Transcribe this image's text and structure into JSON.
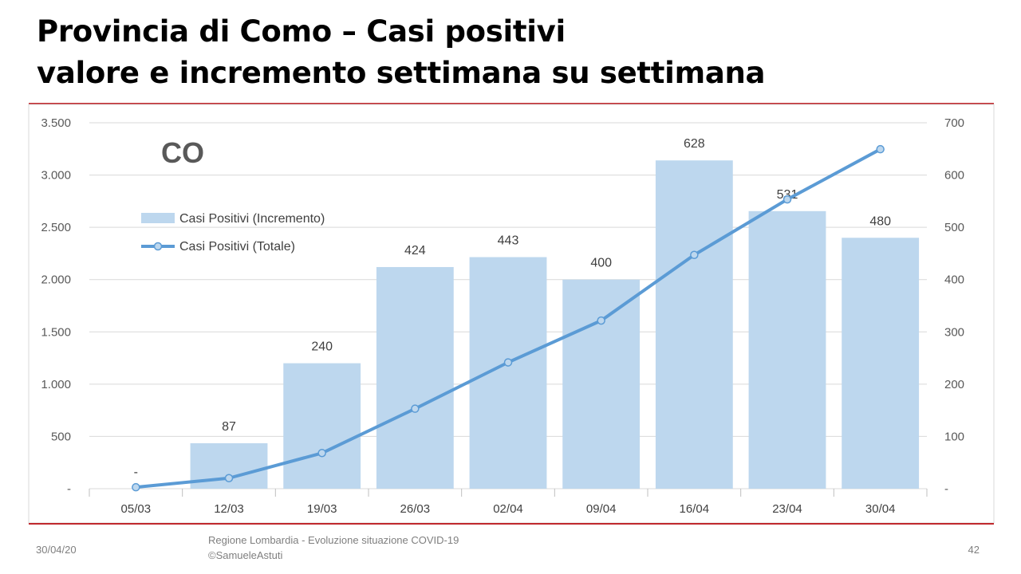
{
  "slide": {
    "title_line1": "Provincia di Como – Casi positivi",
    "title_line2": "valore e incremento settimana su settimana",
    "province_code": "CO",
    "footer_date": "30/04/20",
    "footer_source": "Regione Lombardia - Evoluzione situazione COVID-19",
    "footer_author": "©SamueleAstuti",
    "page_number": "42"
  },
  "chart_data": {
    "type": "bar",
    "categories": [
      "05/03",
      "12/03",
      "19/03",
      "26/03",
      "02/04",
      "09/04",
      "16/04",
      "23/04",
      "30/04"
    ],
    "series": [
      {
        "name": "Casi Positivi (Incremento)",
        "type": "bar",
        "axis": "right",
        "values": [
          0,
          87,
          240,
          424,
          443,
          400,
          628,
          531,
          480
        ],
        "labels": [
          "-",
          "87",
          "240",
          "424",
          "443",
          "400",
          "628",
          "531",
          "480"
        ],
        "color": "#bdd7ee"
      },
      {
        "name": "Casi Positivi (Totale)",
        "type": "line",
        "axis": "left",
        "values": [
          14,
          101,
          341,
          765,
          1208,
          1608,
          2236,
          2767,
          3247
        ],
        "color": "#5b9bd5"
      }
    ],
    "left_axis": {
      "ylim": [
        0,
        3500
      ],
      "ticks": [
        "-",
        "500",
        "1.000",
        "1.500",
        "2.000",
        "2.500",
        "3.000",
        "3.500"
      ]
    },
    "right_axis": {
      "ylim": [
        0,
        700
      ],
      "ticks": [
        "-",
        "100",
        "200",
        "300",
        "400",
        "500",
        "600",
        "700"
      ]
    },
    "grid": true,
    "legend_position": "top-left"
  }
}
